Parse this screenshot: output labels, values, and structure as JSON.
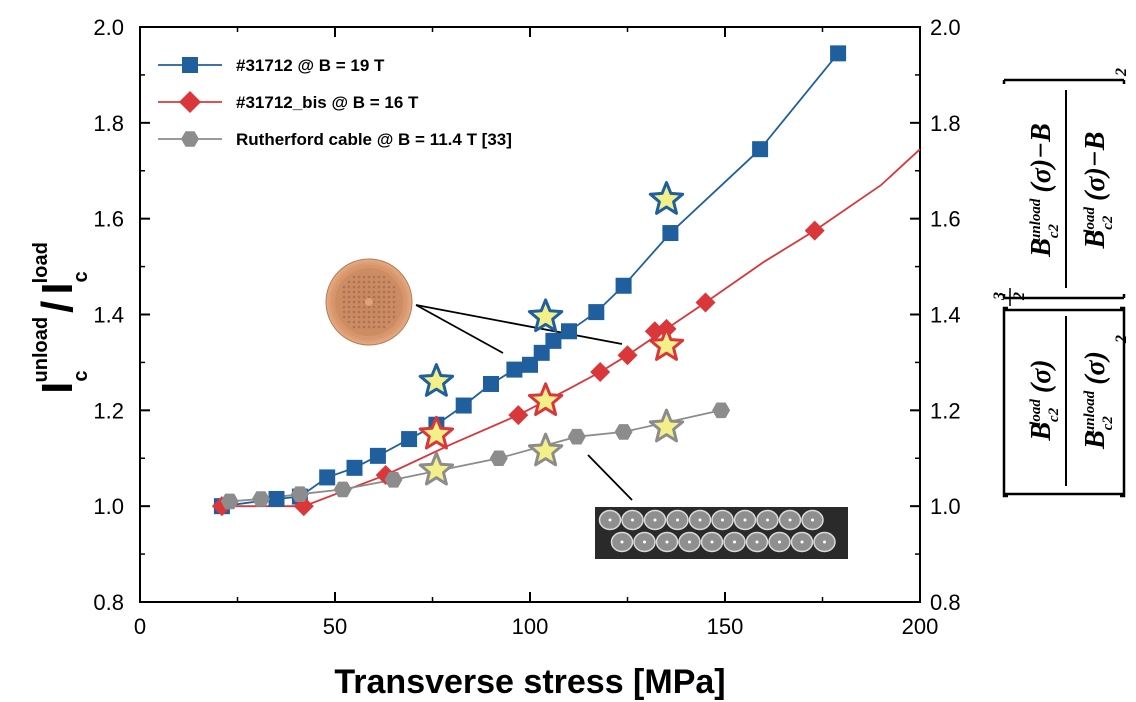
{
  "chart_data": {
    "type": "line",
    "xlabel": "Transverse stress [MPa]",
    "ylabel": {
      "base1": "I",
      "sub1": "c",
      "sup1": "unload",
      "slash": "/",
      "base2": "I",
      "sub2": "c",
      "sup2": "load"
    },
    "right_ylabel": {
      "num_top": "B",
      "num_top_sub": "c2",
      "num_top_sup": "load",
      "num_bottom": "B",
      "num_bottom_sub": "c2",
      "num_bottom_sup": "unload",
      "den_top": "B",
      "den_top_sub": "c2",
      "den_top_sup": "unload",
      "den_bottom": "B",
      "den_bottom_sub": "c2",
      "den_bottom_sup": "load",
      "sigma": "(σ)",
      "sigma_minus_b": "(σ)−B",
      "exp_num": "3",
      "exp_den": "2",
      "exp_two": "2"
    },
    "xlim": [
      0,
      200
    ],
    "ylim": [
      0.8,
      2.0
    ],
    "x_ticks": [
      "0",
      "50",
      "100",
      "150",
      "200"
    ],
    "x_tick_values": [
      0,
      50,
      100,
      150,
      200
    ],
    "y_ticks": [
      "0.8",
      "1.0",
      "1.2",
      "1.4",
      "1.6",
      "1.8",
      "2.0"
    ],
    "y_tick_values": [
      0.8,
      1.0,
      1.2,
      1.4,
      1.6,
      1.8,
      2.0
    ],
    "grid": false,
    "legend_position": "top-left",
    "series": [
      {
        "name": "#31712 @ B = 19 T",
        "marker": "square",
        "color": "#1f5f9e",
        "x": [
          21,
          35,
          41,
          48,
          55,
          61,
          69,
          76,
          83,
          90,
          96,
          100,
          103,
          106,
          110,
          117,
          124,
          136,
          159,
          179
        ],
        "y": [
          1.0,
          1.015,
          1.02,
          1.06,
          1.08,
          1.105,
          1.14,
          1.17,
          1.21,
          1.255,
          1.285,
          1.295,
          1.32,
          1.345,
          1.365,
          1.405,
          1.46,
          1.57,
          1.745,
          1.945
        ],
        "curve_y": [
          1.0,
          1.015,
          1.02,
          1.06,
          1.08,
          1.105,
          1.14,
          1.17,
          1.21,
          1.255,
          1.285,
          1.295,
          1.32,
          1.345,
          1.365,
          1.405,
          1.46,
          1.57,
          1.745,
          1.945
        ]
      },
      {
        "name": "#31712_bis @ B = 16 T",
        "marker": "diamond",
        "color": "#d9373a",
        "x": [
          21,
          42,
          63,
          97,
          118,
          125,
          132,
          135,
          145,
          173
        ],
        "y": [
          1.0,
          1.0,
          1.065,
          1.19,
          1.28,
          1.315,
          1.365,
          1.37,
          1.425,
          1.575
        ],
        "curve_x": [
          21,
          42,
          63,
          80,
          97,
          110,
          118,
          125,
          135,
          145,
          160,
          173,
          190,
          200
        ],
        "curve_y": [
          1.0,
          1.0,
          1.065,
          1.13,
          1.19,
          1.245,
          1.28,
          1.315,
          1.37,
          1.425,
          1.51,
          1.575,
          1.67,
          1.745
        ]
      },
      {
        "name": "Rutherford cable @ B = 11.4 T [33]",
        "marker": "hexagon",
        "color": "#8c8c8c",
        "x": [
          23,
          31,
          41,
          52,
          65,
          92,
          112,
          124,
          149
        ],
        "y": [
          1.01,
          1.015,
          1.025,
          1.035,
          1.055,
          1.1,
          1.145,
          1.155,
          1.2
        ],
        "curve_y": [
          1.01,
          1.015,
          1.025,
          1.035,
          1.055,
          1.1,
          1.145,
          1.155,
          1.2
        ]
      }
    ],
    "star_markers": [
      {
        "x": 76,
        "y": 1.26,
        "fill": "#f3f08a",
        "stroke": "#1f5f9e"
      },
      {
        "x": 104,
        "y": 1.395,
        "fill": "#f3f08a",
        "stroke": "#1f5f9e"
      },
      {
        "x": 135,
        "y": 1.64,
        "fill": "#f3f08a",
        "stroke": "#1f5f9e"
      },
      {
        "x": 76,
        "y": 1.15,
        "fill": "#f3f08a",
        "stroke": "#d9373a"
      },
      {
        "x": 104,
        "y": 1.22,
        "fill": "#f3f08a",
        "stroke": "#d9373a"
      },
      {
        "x": 135,
        "y": 1.335,
        "fill": "#f3f08a",
        "stroke": "#d9373a"
      },
      {
        "x": 76,
        "y": 1.075,
        "fill": "#f3f08a",
        "stroke": "#8c8c8c"
      },
      {
        "x": 104,
        "y": 1.115,
        "fill": "#f3f08a",
        "stroke": "#8c8c8c"
      },
      {
        "x": 135,
        "y": 1.165,
        "fill": "#f3f08a",
        "stroke": "#8c8c8c"
      }
    ],
    "insets": [
      {
        "name": "strand-cross-section-inset",
        "kind": "round-wire",
        "color": "#d9956b"
      },
      {
        "name": "rutherford-cable-inset",
        "kind": "flat-cable",
        "color": "#2a2a2a"
      }
    ]
  }
}
